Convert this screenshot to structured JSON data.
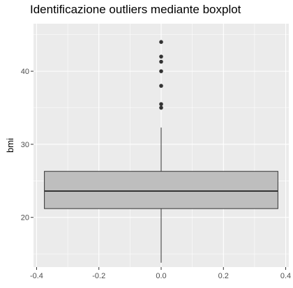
{
  "chart_data": {
    "type": "boxplot",
    "title": "Identificazione outliers mediante boxplot",
    "xlabel": "",
    "ylabel": "bmi",
    "xlim": [
      -0.41,
      0.41
    ],
    "ylim": [
      13.2,
      46.5
    ],
    "x_ticks": [
      -0.4,
      -0.2,
      0.0,
      0.2,
      0.4
    ],
    "x_tick_labels": [
      "-0.4",
      "-0.2",
      "0.0",
      "0.2",
      "0.4"
    ],
    "y_ticks": [
      20,
      30,
      40
    ],
    "y_tick_labels": [
      "20",
      "30",
      "40"
    ],
    "grid": true,
    "box": {
      "x_center": 0.0,
      "x_left": -0.375,
      "x_right": 0.375,
      "whisker_low": 13.8,
      "q1": 21.2,
      "median": 23.6,
      "q3": 26.3,
      "whisker_high": 32.3
    },
    "outliers": [
      35.0,
      35.5,
      38.0,
      40.0,
      41.3,
      42.0,
      44.0
    ],
    "colors": {
      "panel_bg": "#ebebeb",
      "grid_major": "#ffffff",
      "box_fill": "#bebebe",
      "box_line": "#333333",
      "point": "#333333"
    }
  }
}
